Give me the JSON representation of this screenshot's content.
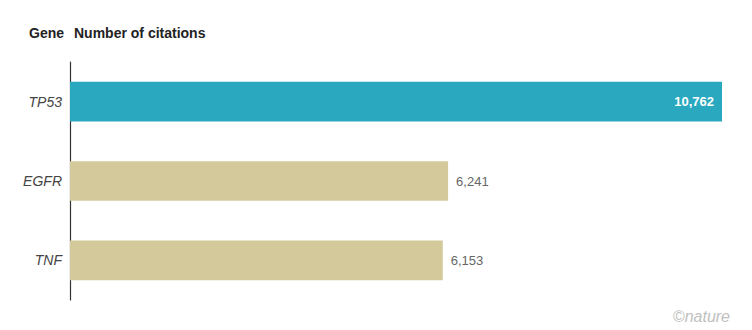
{
  "chart_data": {
    "type": "bar",
    "orientation": "horizontal",
    "categories": [
      "TP53",
      "EGFR",
      "TNF"
    ],
    "values": [
      10762,
      6241,
      6153
    ],
    "colors": [
      "#29a8c0",
      "#d4c99a",
      "#d4c99a"
    ],
    "value_labels": [
      "10,762",
      "6,241",
      "6,153"
    ],
    "data_labels": true,
    "xlim": [
      0,
      10762
    ],
    "tick_labels": "y",
    "grid": false,
    "annotations": [
      "Gene",
      "Number of citations",
      "©nature"
    ]
  }
}
